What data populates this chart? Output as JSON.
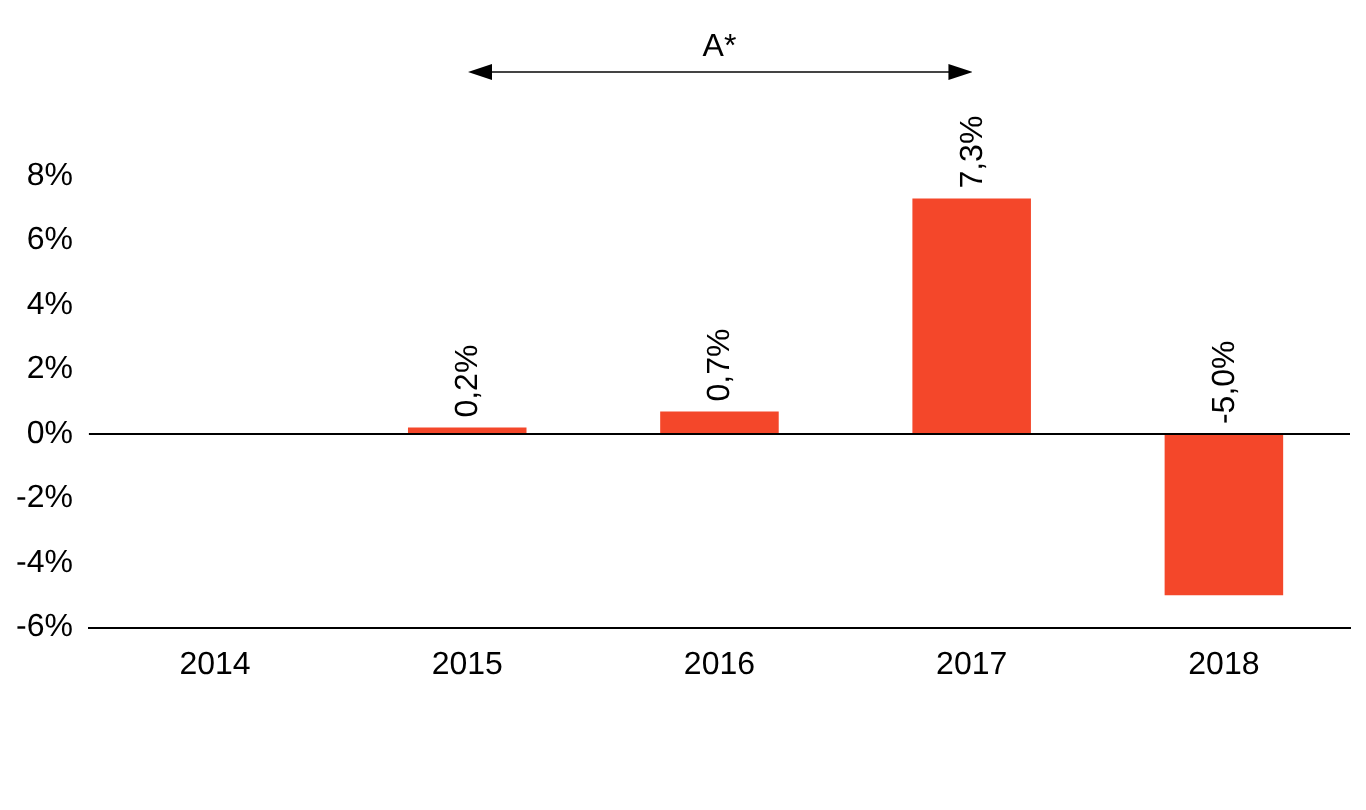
{
  "chart_data": {
    "type": "bar",
    "categories": [
      "2014",
      "2015",
      "2016",
      "2017",
      "2018"
    ],
    "series": [
      {
        "color": "#f4472a",
        "values": [
          null,
          0.2,
          0.7,
          7.3,
          -5.0
        ],
        "value_labels": [
          null,
          "0,2%",
          "0,7%",
          "7,3%",
          "-5,0%"
        ]
      }
    ],
    "ylim": [
      -6,
      8
    ],
    "yticks": [
      {
        "value": -6,
        "label": "-6%"
      },
      {
        "value": -4,
        "label": "-4%"
      },
      {
        "value": -2,
        "label": "-2%"
      },
      {
        "value": 0,
        "label": "0%"
      },
      {
        "value": 2,
        "label": "2%"
      },
      {
        "value": 4,
        "label": "4%"
      },
      {
        "value": 6,
        "label": "6%"
      },
      {
        "value": 8,
        "label": "8%"
      }
    ],
    "annotations": [
      "A*"
    ],
    "ref_lines": [
      {
        "axis": "y",
        "value": 0,
        "color": "#000000"
      }
    ],
    "grid": false,
    "legend": false
  }
}
